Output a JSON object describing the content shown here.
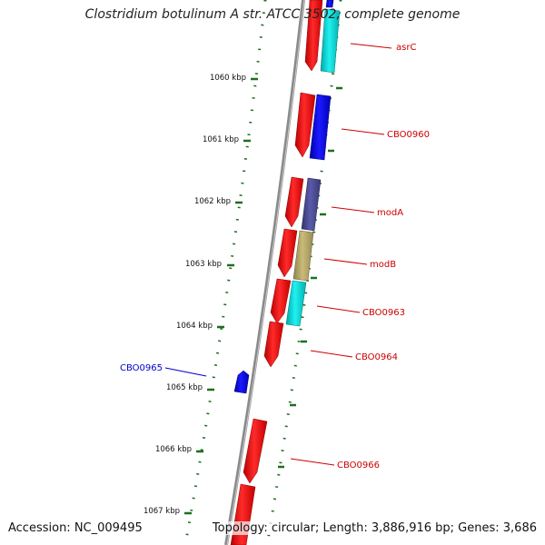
{
  "title": "Clostridium botulinum A str. ATCC 3502, complete genome",
  "footer": {
    "accession": "Accession: NC_009495",
    "topology": "Topology: circular; Length: 3,886,916 bp; Genes: 3,686"
  },
  "colors": {
    "backbone": "#8a8a8a",
    "tick": "#1f6e1f",
    "gene_label": "#cc0000",
    "highlight_label": "#0000cc",
    "red_gene": "#ee1111",
    "blue_gene": "#0000ee",
    "cyan_gene": "#00dddd",
    "slate_gene": "#4a4a99",
    "khaki_gene": "#b5a866"
  },
  "tick_labels": [
    "1060 kbp",
    "1061 kbp",
    "1062 kbp",
    "1063 kbp",
    "1064 kbp",
    "1065 kbp",
    "1066 kbp",
    "1067 kbp"
  ],
  "gene_labels": [
    {
      "text": "asrC",
      "color": "#cc0000"
    },
    {
      "text": "CBO0960",
      "color": "#cc0000"
    },
    {
      "text": "modA",
      "color": "#cc0000"
    },
    {
      "text": "modB",
      "color": "#cc0000"
    },
    {
      "text": "CBO0963",
      "color": "#cc0000"
    },
    {
      "text": "CBO0964",
      "color": "#cc0000"
    },
    {
      "text": "CBO0965",
      "color": "#0000cc"
    },
    {
      "text": "CBO0966",
      "color": "#cc0000"
    }
  ]
}
